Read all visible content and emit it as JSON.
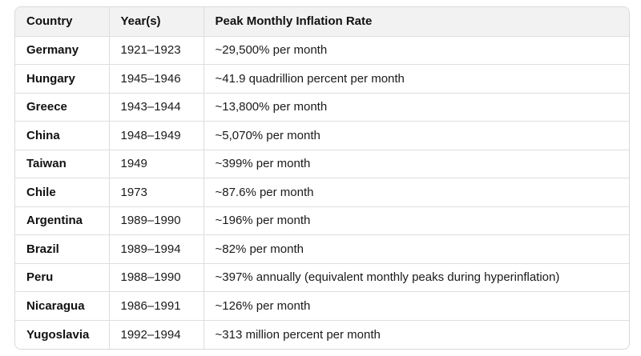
{
  "table": {
    "headers": [
      "Country",
      "Year(s)",
      "Peak Monthly Inflation Rate"
    ],
    "rows": [
      [
        "Germany",
        "1921–1923",
        "~29,500% per month"
      ],
      [
        "Hungary",
        "1945–1946",
        "~41.9 quadrillion percent per month"
      ],
      [
        "Greece",
        "1943–1944",
        "~13,800% per month"
      ],
      [
        "China",
        "1948–1949",
        "~5,070% per month"
      ],
      [
        "Taiwan",
        "1949",
        "~399% per month"
      ],
      [
        "Chile",
        "1973",
        "~87.6% per month"
      ],
      [
        "Argentina",
        "1989–1990",
        "~196% per month"
      ],
      [
        "Brazil",
        "1989–1994",
        "~82% per month"
      ],
      [
        "Peru",
        "1988–1990",
        "~397% annually (equivalent monthly peaks during hyperinflation)"
      ],
      [
        "Nicaragua",
        "1986–1991",
        "~126% per month"
      ],
      [
        "Yugoslavia",
        "1992–1994",
        "~313 million percent per month"
      ]
    ]
  }
}
